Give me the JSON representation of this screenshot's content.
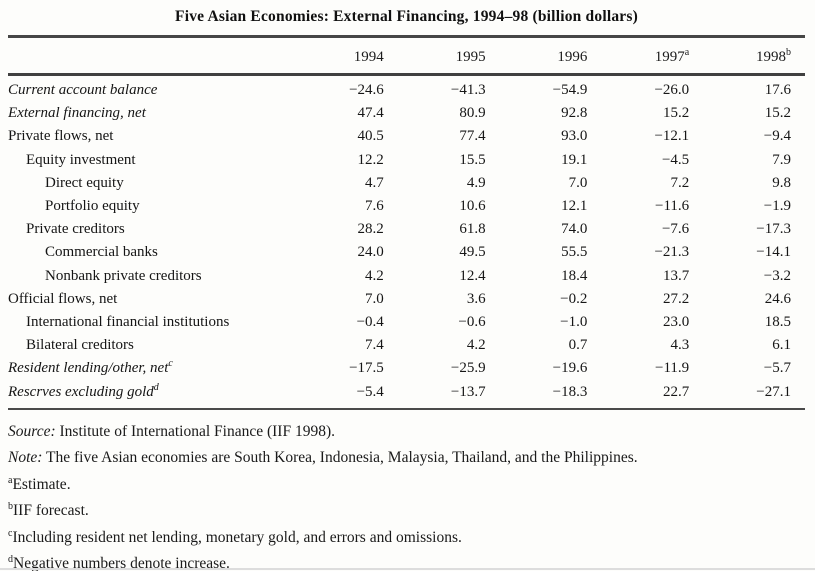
{
  "title": "Five Asian Economies: External Financing, 1994–98 (billion dollars)",
  "table": {
    "year_columns": [
      {
        "label": "1994",
        "sup": ""
      },
      {
        "label": "1995",
        "sup": ""
      },
      {
        "label": "1996",
        "sup": ""
      },
      {
        "label": "1997",
        "sup": "a"
      },
      {
        "label": "1998",
        "sup": "b"
      }
    ],
    "rows": [
      {
        "label": "Current account balance",
        "sup": "",
        "indent": 0,
        "italic": true,
        "values": [
          "−24.6",
          "−41.3",
          "−54.9",
          "−26.0",
          "17.6"
        ]
      },
      {
        "label": "External financing, net",
        "sup": "",
        "indent": 0,
        "italic": true,
        "values": [
          "47.4",
          "80.9",
          "92.8",
          "15.2",
          "15.2"
        ]
      },
      {
        "label": "Private flows, net",
        "sup": "",
        "indent": 0,
        "italic": false,
        "values": [
          "40.5",
          "77.4",
          "93.0",
          "−12.1",
          "−9.4"
        ]
      },
      {
        "label": "Equity investment",
        "sup": "",
        "indent": 1,
        "italic": false,
        "values": [
          "12.2",
          "15.5",
          "19.1",
          "−4.5",
          "7.9"
        ]
      },
      {
        "label": "Direct equity",
        "sup": "",
        "indent": 2,
        "italic": false,
        "values": [
          "4.7",
          "4.9",
          "7.0",
          "7.2",
          "9.8"
        ]
      },
      {
        "label": "Portfolio equity",
        "sup": "",
        "indent": 2,
        "italic": false,
        "values": [
          "7.6",
          "10.6",
          "12.1",
          "−11.6",
          "−1.9"
        ]
      },
      {
        "label": "Private creditors",
        "sup": "",
        "indent": 1,
        "italic": false,
        "values": [
          "28.2",
          "61.8",
          "74.0",
          "−7.6",
          "−17.3"
        ]
      },
      {
        "label": "Commercial banks",
        "sup": "",
        "indent": 2,
        "italic": false,
        "values": [
          "24.0",
          "49.5",
          "55.5",
          "−21.3",
          "−14.1"
        ]
      },
      {
        "label": "Nonbank private creditors",
        "sup": "",
        "indent": 2,
        "italic": false,
        "values": [
          "4.2",
          "12.4",
          "18.4",
          "13.7",
          "−3.2"
        ]
      },
      {
        "label": "Official flows, net",
        "sup": "",
        "indent": 0,
        "italic": false,
        "values": [
          "7.0",
          "3.6",
          "−0.2",
          "27.2",
          "24.6"
        ]
      },
      {
        "label": "International financial institutions",
        "sup": "",
        "indent": 1,
        "italic": false,
        "values": [
          "−0.4",
          "−0.6",
          "−1.0",
          "23.0",
          "18.5"
        ]
      },
      {
        "label": "Bilateral creditors",
        "sup": "",
        "indent": 1,
        "italic": false,
        "values": [
          "7.4",
          "4.2",
          "0.7",
          "4.3",
          "6.1"
        ]
      },
      {
        "label": "Resident lending/other, net",
        "sup": "c",
        "indent": 0,
        "italic": true,
        "values": [
          "−17.5",
          "−25.9",
          "−19.6",
          "−11.9",
          "−5.7"
        ]
      },
      {
        "label": "Rescrves excluding gold",
        "sup": "d",
        "indent": 0,
        "italic": true,
        "values": [
          "−5.4",
          "−13.7",
          "−18.3",
          "22.7",
          "−27.1"
        ]
      }
    ]
  },
  "notes": {
    "source_label": "Source:",
    "source_text": "Institute of International Finance (IIF 1998).",
    "note_label": "Note:",
    "note_text": "The five Asian economies are South Korea, Indonesia, Malaysia, Thailand, and the Philippines.",
    "footnotes": [
      {
        "marker": "a",
        "text": "Estimate."
      },
      {
        "marker": "b",
        "text": "IIF forecast."
      },
      {
        "marker": "c",
        "text": "Including resident net lending, monetary gold, and errors and omissions."
      },
      {
        "marker": "d",
        "text": "Negative numbers denote increase."
      }
    ]
  }
}
